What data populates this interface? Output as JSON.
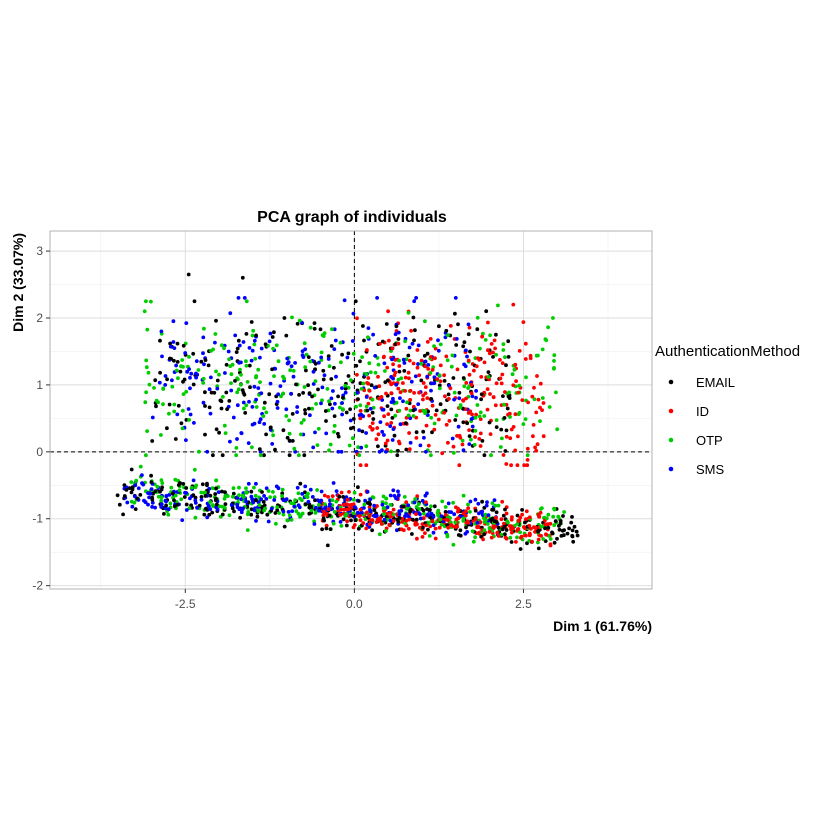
{
  "chart_data": {
    "type": "scatter",
    "title": "PCA graph of individuals",
    "xlabel": "Dim 1 (61.76%)",
    "ylabel": "Dim 2 (33.07%)",
    "xlim": [
      -4.5,
      4.4
    ],
    "ylim": [
      -2.05,
      3.3
    ],
    "x_ticks": [
      -2.5,
      0.0,
      2.5
    ],
    "x_tick_labels": [
      "-2.5",
      "0.0",
      "2.5"
    ],
    "y_ticks": [
      -2,
      -1,
      0,
      1,
      2,
      3
    ],
    "y_tick_labels": [
      "-2",
      "-1",
      "0",
      "1",
      "2",
      "3"
    ],
    "grid": true,
    "reference_lines": {
      "x": 0,
      "y": 0,
      "style": "dashed"
    },
    "legend": {
      "title": "AuthenticationMethod",
      "position": "right",
      "entries": [
        "EMAIL",
        "ID",
        "OTP",
        "SMS"
      ]
    },
    "series": [
      {
        "name": "EMAIL",
        "color": "#000000",
        "clusters": [
          {
            "x_range": [
              -3.0,
              2.3
            ],
            "y_center": 1.0,
            "y_spread": 0.55,
            "count": 260
          },
          {
            "x_range": [
              -3.5,
              3.3
            ],
            "y_at_x_min": -0.6,
            "y_at_x_max": -1.2,
            "y_spread": 0.14,
            "count": 300
          }
        ],
        "notable_points": [
          {
            "x": -2.45,
            "y": 2.65
          },
          {
            "x": -1.65,
            "y": 2.6
          },
          {
            "x": 3.3,
            "y": -1.25
          },
          {
            "x": -3.5,
            "y": -0.65
          }
        ]
      },
      {
        "name": "ID",
        "color": "#ff0000",
        "clusters": [
          {
            "x_range": [
              0.0,
              2.8
            ],
            "y_center": 0.85,
            "y_spread": 0.5,
            "count": 260
          },
          {
            "x_range": [
              -0.5,
              2.9
            ],
            "y_at_x_min": -0.85,
            "y_at_x_max": -1.2,
            "y_spread": 0.13,
            "count": 260
          }
        ],
        "notable_points": [
          {
            "x": 2.35,
            "y": 2.2
          },
          {
            "x": 2.9,
            "y": -1.4
          }
        ]
      },
      {
        "name": "OTP",
        "color": "#00cd00",
        "clusters": [
          {
            "x_range": [
              -3.1,
              3.0
            ],
            "y_center": 1.0,
            "y_spread": 0.55,
            "count": 300
          },
          {
            "x_range": [
              -3.3,
              3.1
            ],
            "y_at_x_min": -0.6,
            "y_at_x_max": -1.15,
            "y_spread": 0.15,
            "count": 320
          }
        ],
        "notable_points": [
          {
            "x": -3.1,
            "y": 2.1
          },
          {
            "x": 3.1,
            "y": -0.9
          }
        ]
      },
      {
        "name": "SMS",
        "color": "#0000ff",
        "clusters": [
          {
            "x_range": [
              -3.0,
              1.8
            ],
            "y_center": 1.05,
            "y_spread": 0.5,
            "count": 260
          },
          {
            "x_range": [
              -3.4,
              2.2
            ],
            "y_at_x_min": -0.6,
            "y_at_x_max": -1.0,
            "y_spread": 0.13,
            "count": 280
          }
        ],
        "notable_points": [
          {
            "x": -3.4,
            "y": -0.55
          },
          {
            "x": 1.5,
            "y": 2.3
          }
        ]
      }
    ]
  }
}
